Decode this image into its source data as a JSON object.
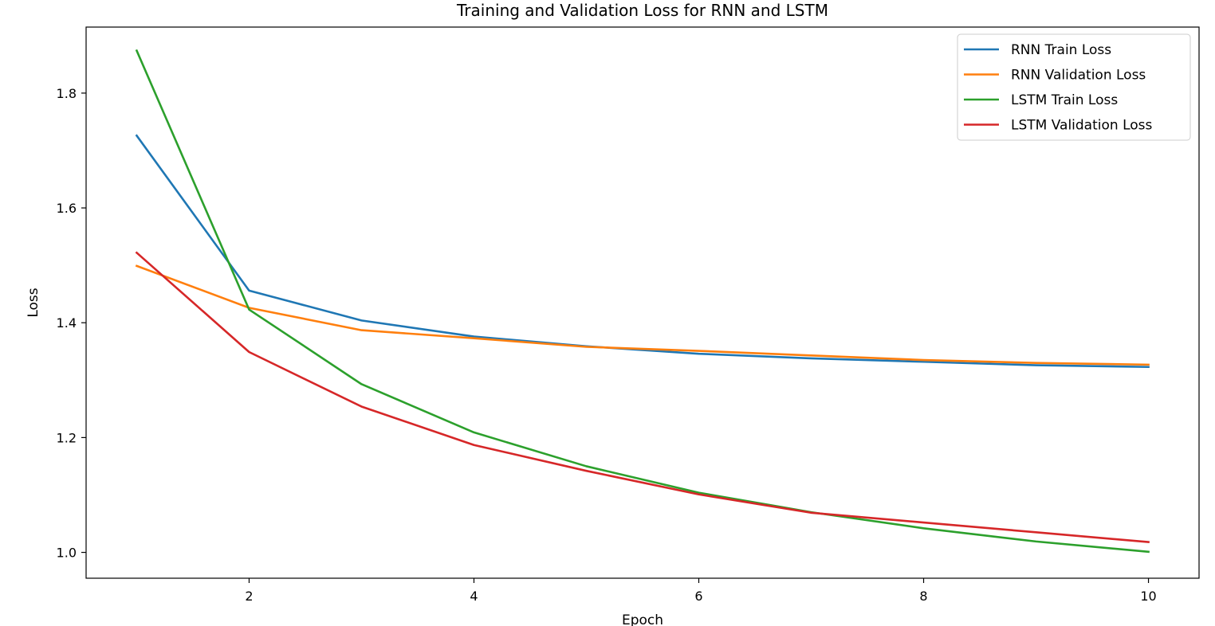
{
  "chart_data": {
    "type": "line",
    "title": "Training and Validation Loss for RNN and LSTM",
    "xlabel": "Epoch",
    "ylabel": "Loss",
    "x": [
      1,
      2,
      3,
      4,
      5,
      6,
      7,
      8,
      9,
      10
    ],
    "xlim": [
      0.55,
      10.45
    ],
    "ylim": [
      0.955,
      1.915
    ],
    "xticks": [
      2,
      4,
      6,
      8,
      10
    ],
    "yticks": [
      1.0,
      1.2,
      1.4,
      1.6,
      1.8
    ],
    "xtick_labels": [
      "2",
      "4",
      "6",
      "8",
      "10"
    ],
    "ytick_labels": [
      "1.0",
      "1.2",
      "1.4",
      "1.6",
      "1.8"
    ],
    "grid": false,
    "legend_position": "top-right",
    "series": [
      {
        "name": "RNN Train Loss",
        "color": "#1f77b4",
        "values": [
          1.726,
          1.456,
          1.404,
          1.376,
          1.359,
          1.346,
          1.338,
          1.332,
          1.326,
          1.323
        ]
      },
      {
        "name": "RNN Validation Loss",
        "color": "#ff7f0e",
        "values": [
          1.499,
          1.426,
          1.387,
          1.373,
          1.358,
          1.351,
          1.343,
          1.335,
          1.33,
          1.327
        ]
      },
      {
        "name": "LSTM Train Loss",
        "color": "#2ca02c",
        "values": [
          1.874,
          1.423,
          1.293,
          1.209,
          1.15,
          1.104,
          1.07,
          1.042,
          1.019,
          1.001
        ]
      },
      {
        "name": "LSTM Validation Loss",
        "color": "#d62728",
        "values": [
          1.522,
          1.349,
          1.254,
          1.187,
          1.142,
          1.101,
          1.069,
          1.052,
          1.035,
          1.018
        ]
      }
    ]
  }
}
